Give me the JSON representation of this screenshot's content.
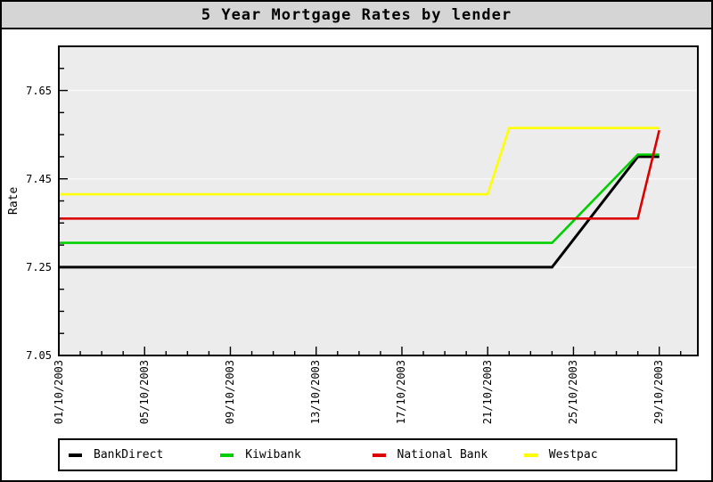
{
  "window": {
    "title": "5 Year Mortgage Rates by lender"
  },
  "colors": {
    "page_bg": "#ffffff",
    "titlebar_bg": "#d5d5d5",
    "plot_bg": "#ececec",
    "grid_line": "#f8f8f8",
    "axis": "#000000",
    "legend_bg": "#ffffff"
  },
  "chart_data": {
    "type": "line",
    "title": "5 Year Mortgage Rates by lender",
    "xlabel": "",
    "ylabel": "Rate",
    "x_tick_labels": [
      "01/10/2003",
      "05/10/2003",
      "09/10/2003",
      "13/10/2003",
      "17/10/2003",
      "21/10/2003",
      "25/10/2003",
      "29/10/2003"
    ],
    "x_major_days": [
      1,
      5,
      9,
      13,
      17,
      21,
      25,
      29
    ],
    "x_minor_step_days": 1,
    "x_range_days": [
      1,
      30.8
    ],
    "y_tick_labels": [
      "7.65",
      "7.45",
      "7.25",
      "7.05"
    ],
    "y_major_values": [
      7.65,
      7.45,
      7.25,
      7.05
    ],
    "y_minor_step": 0.05,
    "y_range": [
      7.05,
      7.75
    ],
    "grid": "horizontal-major",
    "legend_position": "bottom",
    "series": [
      {
        "name": "BankDirect",
        "color": "#000000",
        "points": [
          [
            1,
            7.25
          ],
          [
            24,
            7.25
          ],
          [
            28,
            7.5
          ],
          [
            29,
            7.5
          ]
        ]
      },
      {
        "name": "Kiwibank",
        "color": "#00d000",
        "points": [
          [
            1,
            7.305
          ],
          [
            24,
            7.305
          ],
          [
            28,
            7.505
          ],
          [
            29,
            7.505
          ]
        ]
      },
      {
        "name": "National Bank",
        "color": "#dd0000",
        "points": [
          [
            1,
            7.36
          ],
          [
            28,
            7.36
          ],
          [
            29,
            7.56
          ]
        ]
      },
      {
        "name": "Westpac",
        "color": "#ffff00",
        "points": [
          [
            1,
            7.415
          ],
          [
            21,
            7.415
          ],
          [
            22,
            7.565
          ],
          [
            29,
            7.565
          ]
        ]
      }
    ],
    "draw_order": [
      "Westpac",
      "BankDirect",
      "Kiwibank",
      "National Bank"
    ]
  }
}
